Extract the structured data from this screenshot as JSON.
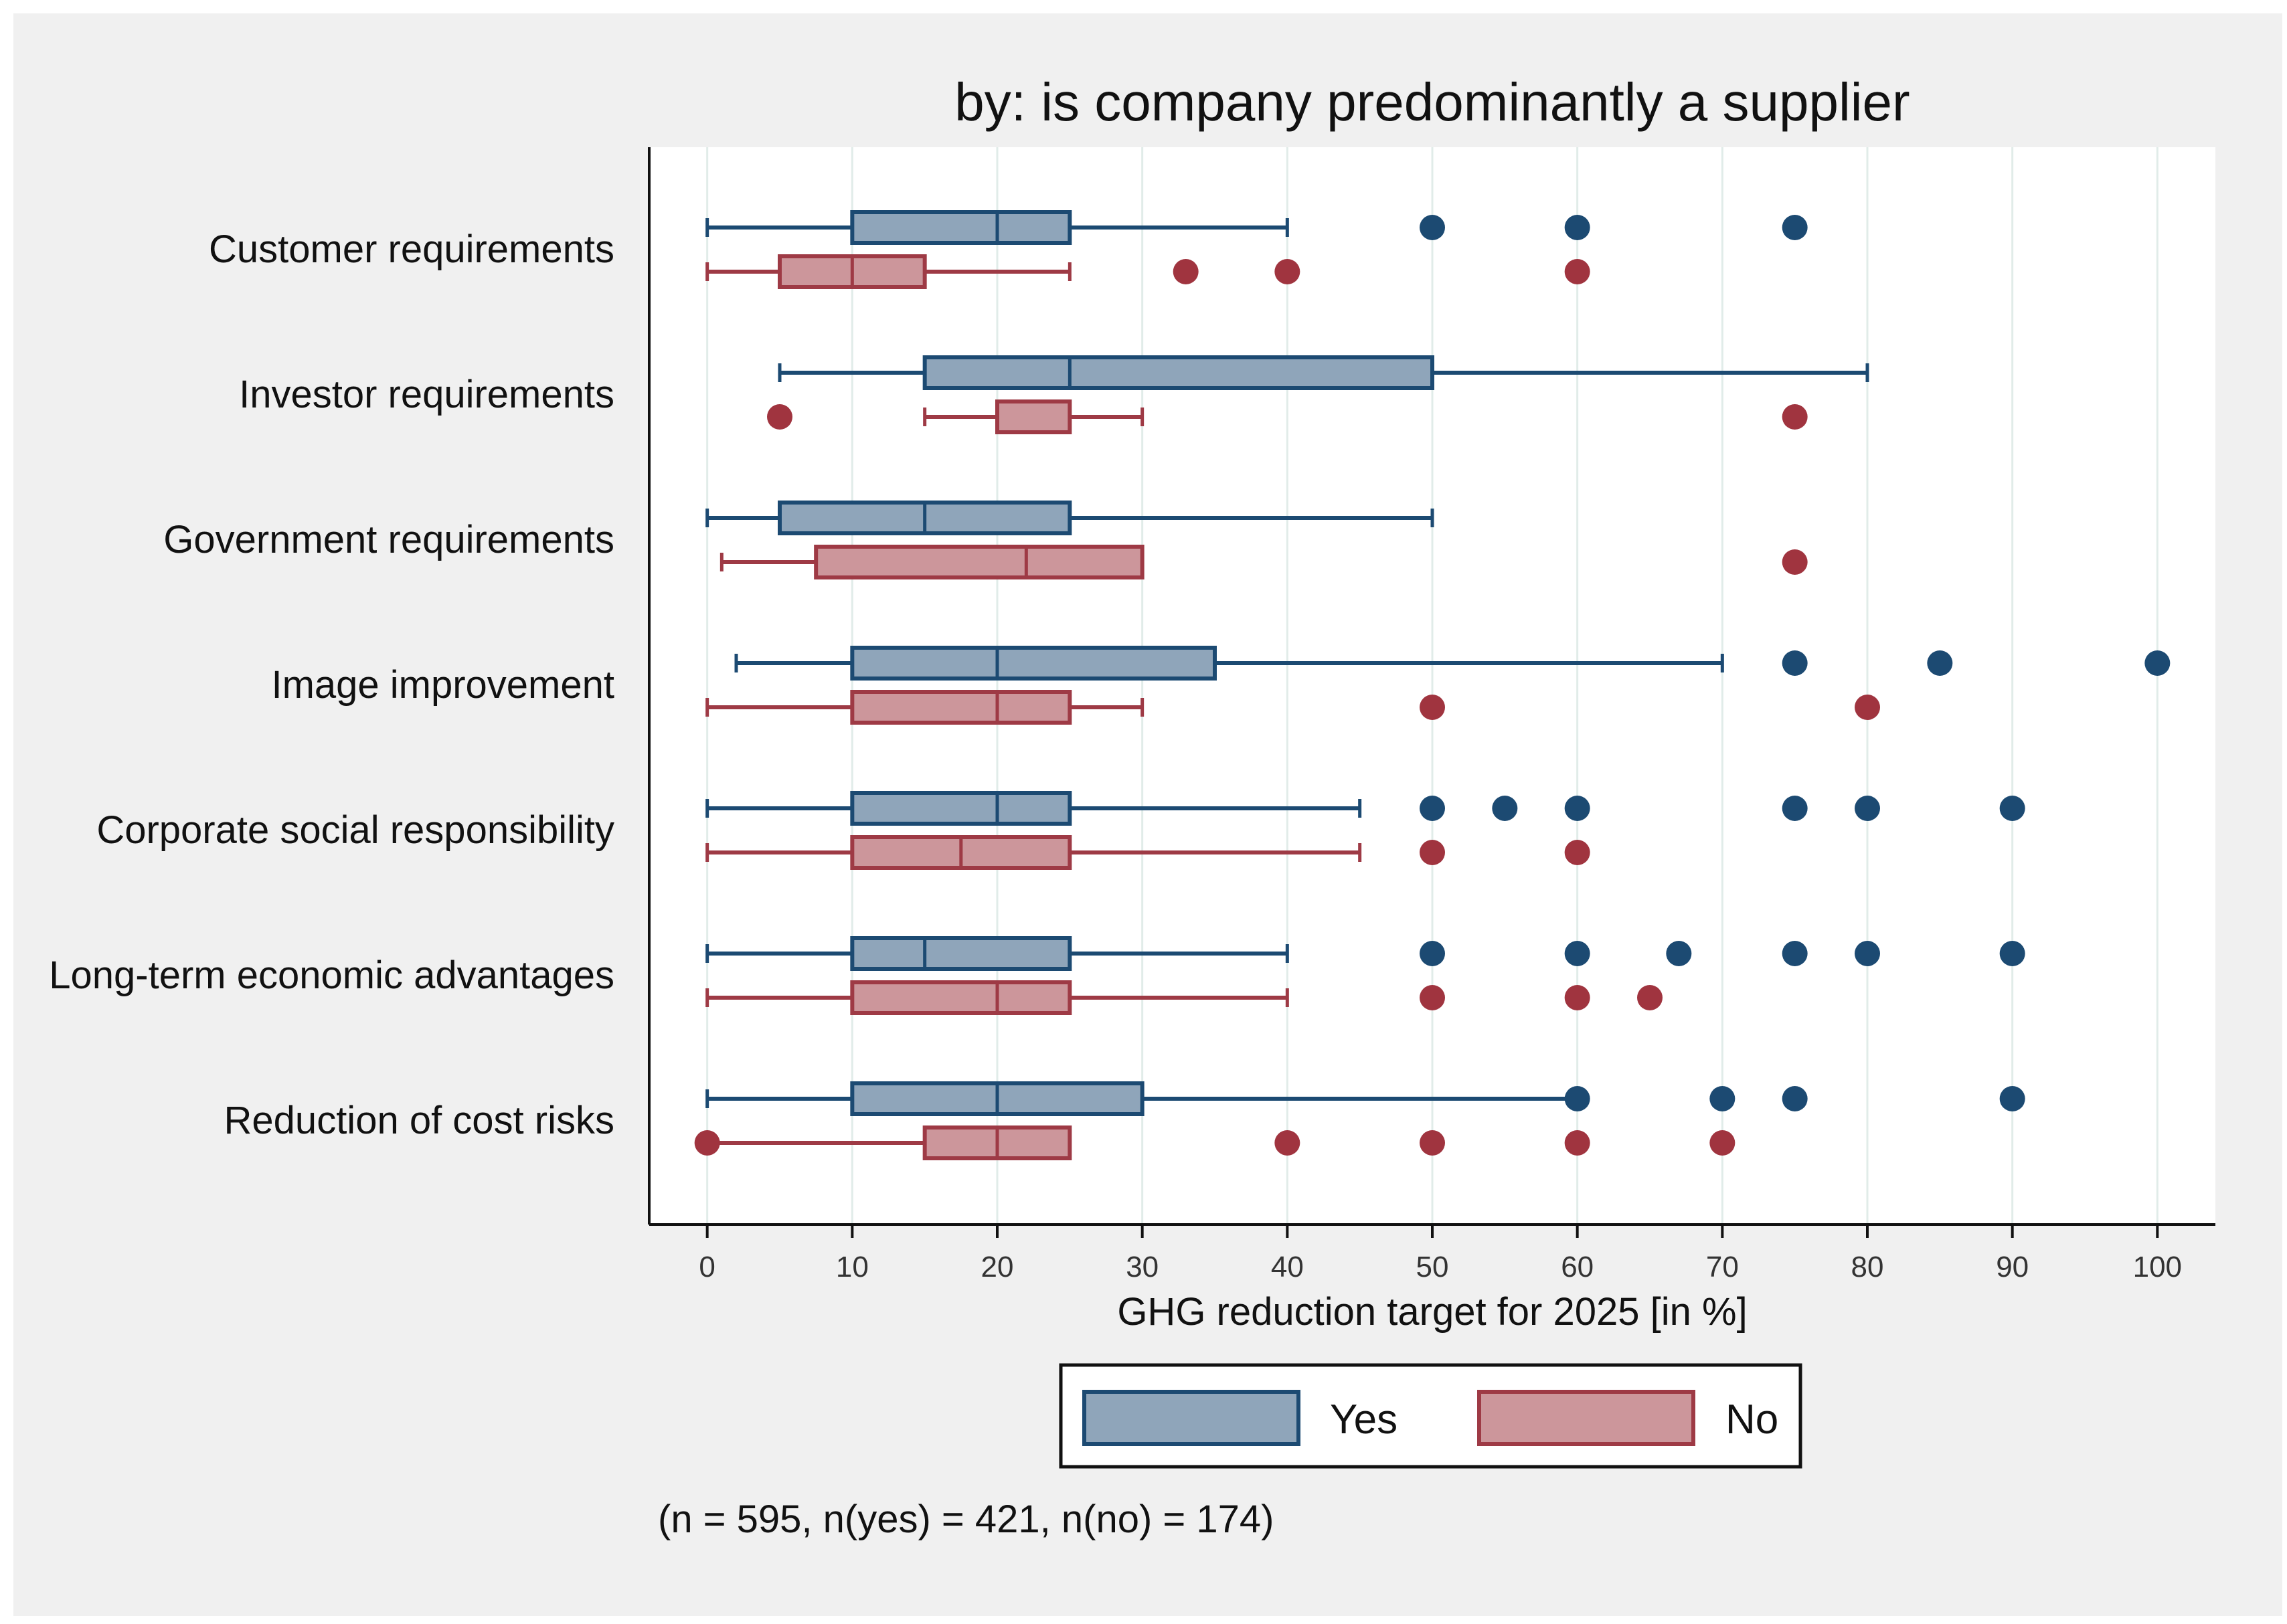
{
  "chart_data": {
    "type": "boxplot",
    "orientation": "horizontal",
    "title": "by: is company predominantly a supplier",
    "xlabel": "GHG reduction target for 2025 [in %]",
    "xlim": [
      -4,
      104
    ],
    "xticks": [
      0,
      10,
      20,
      30,
      40,
      50,
      60,
      70,
      80,
      90,
      100
    ],
    "grid": "vertical",
    "note": "(n = 595, n(yes) = 421, n(no) = 174)",
    "legend": {
      "position": "bottom",
      "entries": [
        "Yes",
        "No"
      ]
    },
    "colors": {
      "Yes": {
        "fill": "#8fa5ba",
        "stroke": "#1c4a72",
        "point": "#1c4a72"
      },
      "No": {
        "fill": "#cc969b",
        "stroke": "#9e3a45",
        "point": "#a0343f"
      }
    },
    "categories": [
      "Customer requirements",
      "Investor requirements",
      "Government requirements",
      "Image improvement",
      "Corporate social responsibility",
      "Long-term economic advantages",
      "Reduction of cost risks"
    ],
    "series": [
      {
        "name": "Yes",
        "boxes": [
          {
            "min": 0,
            "q1": 10,
            "median": 20,
            "q3": 25,
            "max": 40,
            "outliers": [
              50,
              60,
              75
            ]
          },
          {
            "min": 5,
            "q1": 15,
            "median": 25,
            "q3": 50,
            "max": 80,
            "outliers": []
          },
          {
            "min": 0,
            "q1": 5,
            "median": 15,
            "q3": 25,
            "max": 50,
            "outliers": []
          },
          {
            "min": 2,
            "q1": 10,
            "median": 20,
            "q3": 35,
            "max": 70,
            "outliers": [
              75,
              85,
              100
            ]
          },
          {
            "min": 0,
            "q1": 10,
            "median": 20,
            "q3": 25,
            "max": 45,
            "outliers": [
              50,
              55,
              60,
              75,
              80,
              90
            ]
          },
          {
            "min": 0,
            "q1": 10,
            "median": 15,
            "q3": 25,
            "max": 40,
            "outliers": [
              50,
              60,
              67,
              75,
              80,
              90
            ]
          },
          {
            "min": 0,
            "q1": 10,
            "median": 20,
            "q3": 30,
            "max": 60,
            "outliers": [
              60,
              70,
              75,
              90
            ]
          }
        ]
      },
      {
        "name": "No",
        "boxes": [
          {
            "min": 0,
            "q1": 5,
            "median": 10,
            "q3": 15,
            "max": 25,
            "outliers": [
              33,
              40,
              60
            ]
          },
          {
            "min": 15,
            "q1": 20,
            "median": 25,
            "q3": 25,
            "max": 30,
            "outliers": [
              5,
              75
            ]
          },
          {
            "min": 1,
            "q1": 7.5,
            "median": 22,
            "q3": 30,
            "max": 30,
            "outliers": [
              75
            ]
          },
          {
            "min": 0,
            "q1": 10,
            "median": 20,
            "q3": 25,
            "max": 30,
            "outliers": [
              50,
              80
            ]
          },
          {
            "min": 0,
            "q1": 10,
            "median": 17.5,
            "q3": 25,
            "max": 45,
            "outliers": [
              50,
              60
            ]
          },
          {
            "min": 0,
            "q1": 10,
            "median": 20,
            "q3": 25,
            "max": 40,
            "outliers": [
              50,
              60,
              65
            ]
          },
          {
            "min": 0,
            "q1": 15,
            "median": 20,
            "q3": 25,
            "max": 25,
            "outliers": [
              0,
              40,
              50,
              60,
              70
            ]
          }
        ]
      }
    ]
  }
}
